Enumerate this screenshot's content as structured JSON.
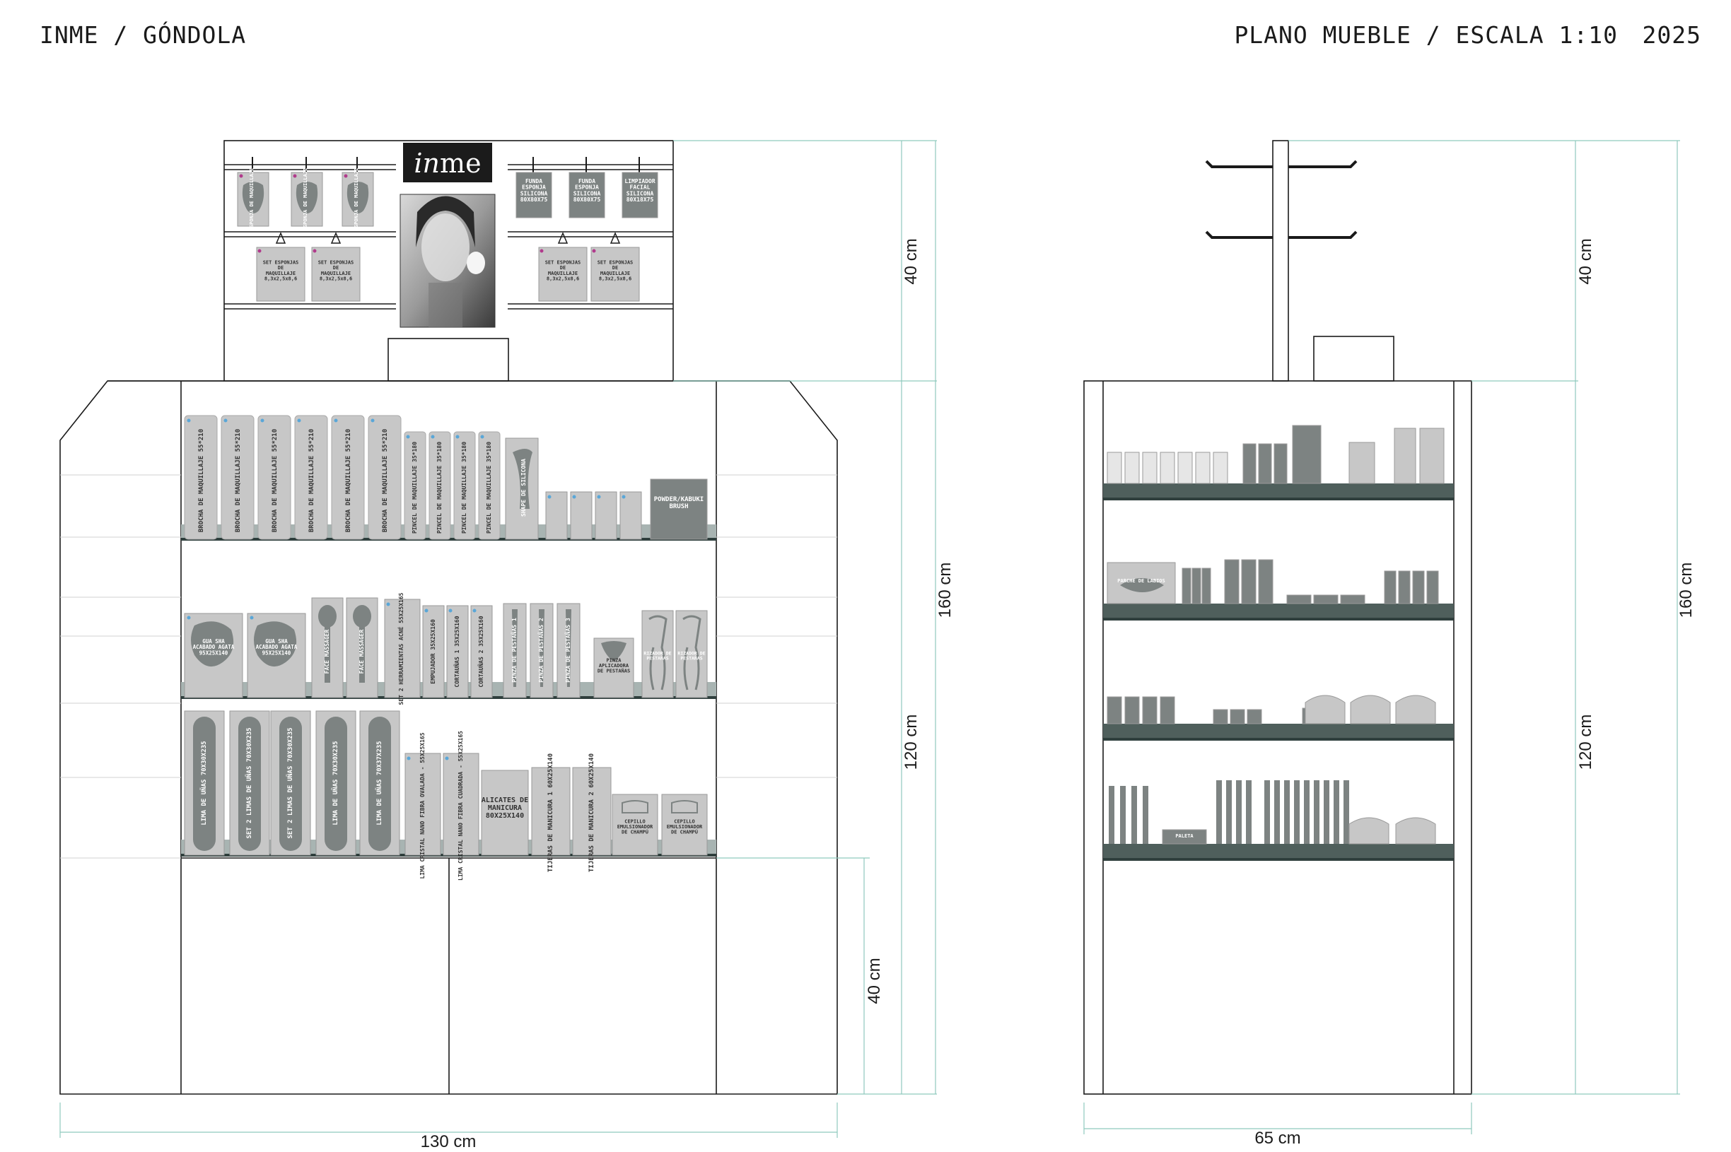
{
  "header": {
    "left": "INME / GÓNDOLA",
    "right": "PLANO MUEBLE / ESCALA 1:10",
    "year": "2025"
  },
  "logo": {
    "inme_prefix": "in",
    "inme_suffix": "me"
  },
  "dimensions": {
    "front_width": "130 cm",
    "side_width": "65 cm",
    "top": "40 cm",
    "middle": "120 cm",
    "total": "160 cm",
    "base": "40 cm"
  },
  "header_products": {
    "left_hooks": [
      "ESPONJA DE MAQUILLAJE",
      "ESPONJA DE MAQUILLAJE",
      "ESPONJA DE MAQUILLAJE"
    ],
    "left_sets": [
      "SET ESPONJAS DE MAQUILLAJE 8,3x2,5x8,6",
      "SET ESPONJAS DE MAQUILLAJE 8,3x2,5x8,6"
    ],
    "right_hooks": [
      "FUNDA ESPONJA SILICONA 80X80X75",
      "FUNDA ESPONJA SILICONA 80X80X75",
      "LIMPIADOR FACIAL SILICONA 80X18X75"
    ],
    "right_sets": [
      "SET ESPONJAS DE MAQUILLAJE 8,3x2,5x8,6",
      "SET ESPONJAS DE MAQUILLAJE 8,3x2,5x8,6"
    ]
  },
  "shelf1": {
    "brochas": [
      "BROCHA DE MAQUILLAJE 55*210",
      "BROCHA DE MAQUILLAJE 55*210",
      "BROCHA DE MAQUILLAJE 55*210",
      "BROCHA DE MAQUILLAJE 55*210",
      "BROCHA DE MAQUILLAJE 55*210",
      "BROCHA DE MAQUILLAJE 55*210"
    ],
    "pinceles": [
      "PINCEL DE MAQUILLAJE 35*180",
      "PINCEL DE MAQUILLAJE 35*180",
      "PINCEL DE MAQUILLAJE 35*180",
      "PINCEL DE MAQUILLAJE 35*180"
    ],
    "shape": "SHAPE DE SILICONA",
    "kabuki": "POWDER/KABUKI BRUSH"
  },
  "shelf2": {
    "gua_sha": [
      "GUA SHA ACABADO AGATA 95X25X140",
      "GUA SHA ACABADO AGATA 95X25X140"
    ],
    "face_massager": [
      "FACE MASSAGER",
      "FACE MASSAGER"
    ],
    "herramientas": "SET 2 HERRAMIENTAS ACNÉ 55X25X165",
    "empujador": "EMPUJADOR 35X25X160",
    "cortaunas1": "CORTAUÑAS 1 35X25X160",
    "cortaunas2": "CORTAUÑAS 2 35X25X160",
    "pinzas": [
      "PINZA DE PESTAÑAS 1",
      "PINZA DE PESTAÑAS 2",
      "PINZA DE PESTAÑAS 3"
    ],
    "pinza_aplicadora": "PINZA APLICADORA DE PESTAÑAS",
    "rizadores": [
      "RIZADOR DE PESTAÑAS",
      "RIZADOR DE PESTAÑAS"
    ]
  },
  "shelf3": {
    "limas": [
      "LIMA DE UÑAS 70X30X235",
      "SET 2 LIMAS DE UÑAS 70X30X235",
      "SET 2 LIMAS DE UÑAS 70X30X235",
      "LIMA DE UÑAS 70X30X235",
      "LIMA DE UÑAS 70X37X235"
    ],
    "lima_cristal_1": "LIMA CRISTAL NANO FIBRA OVALADA - 55X25X165",
    "lima_cristal_2": "LIMA CRISTAL NANO FIBRA CUADRADA - 55X25X165",
    "alicates": "ALICATES DE MANICURA 80X25X140",
    "tijeras1": "TIJERAS DE MANICURA 1 60X25X140",
    "tijeras2": "TIJERAS DE MANICURA 2 60X25X140",
    "cepillos": [
      "CEPILLO EMULSIONADOR DE CHAMPÚ",
      "CEPILLO EMULSIONADOR DE CHAMPÚ"
    ]
  },
  "side": {
    "parche": "PARCHE DE LABIOS",
    "paleta": "PALETA"
  },
  "colors": {
    "line": "#1a1a1a",
    "dim": "#8fc9bd",
    "product": "#c7c7c7",
    "product_dark": "#7d8382",
    "base": "#a8b4b2",
    "shelf": "#2f3f3d",
    "accent": "#b13b8c",
    "blue_dot": "#5aa7d8"
  }
}
